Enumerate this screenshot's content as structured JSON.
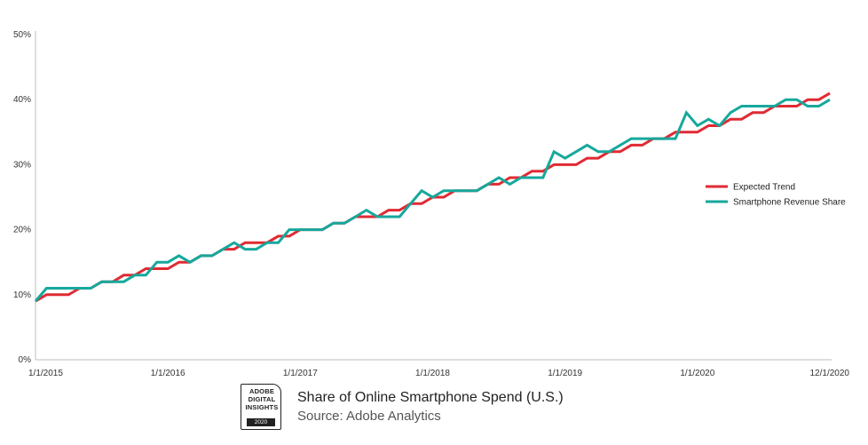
{
  "chart_data": {
    "type": "line",
    "ylim": [
      0,
      50
    ],
    "y_ticks": [
      "50%",
      "40%",
      "30%",
      "20%",
      "10%",
      "0%"
    ],
    "x_ticks": [
      "1/1/2015",
      "1/1/2016",
      "1/1/2017",
      "1/1/2018",
      "1/1/2019",
      "1/1/2020",
      "12/1/2020"
    ],
    "x_start": "1/1/2015",
    "x_end": "12/1/2020",
    "grid": false,
    "legend_position": "right",
    "series": [
      {
        "name": "Expected Trend",
        "color": "#e02a33",
        "values": [
          9,
          10,
          10,
          10,
          11,
          11,
          12,
          12,
          13,
          13,
          14,
          14,
          14,
          15,
          15,
          16,
          16,
          17,
          17,
          18,
          18,
          18,
          19,
          19,
          20,
          20,
          20,
          21,
          21,
          22,
          22,
          22,
          23,
          23,
          24,
          24,
          25,
          25,
          26,
          26,
          26,
          27,
          27,
          28,
          28,
          29,
          29,
          30,
          30,
          30,
          31,
          31,
          32,
          32,
          33,
          33,
          34,
          34,
          35,
          35,
          35,
          36,
          36,
          37,
          37,
          38,
          38,
          39,
          39,
          39,
          40,
          40,
          41
        ]
      },
      {
        "name": "Smartphone Revenue Share",
        "color": "#16a89c",
        "values": [
          9,
          11,
          11,
          11,
          11,
          11,
          12,
          12,
          12,
          13,
          13,
          15,
          15,
          16,
          15,
          16,
          16,
          17,
          18,
          17,
          17,
          18,
          18,
          20,
          20,
          20,
          20,
          21,
          21,
          22,
          23,
          22,
          22,
          22,
          24,
          26,
          25,
          26,
          26,
          26,
          26,
          27,
          28,
          27,
          28,
          28,
          28,
          32,
          31,
          32,
          33,
          32,
          32,
          33,
          34,
          34,
          34,
          34,
          34,
          38,
          36,
          37,
          36,
          38,
          39,
          39,
          39,
          39,
          40,
          40,
          39,
          39,
          40
        ]
      }
    ]
  },
  "footer": {
    "badge_lines": [
      "ADOBE",
      "DIGITAL",
      "INSIGHTS"
    ],
    "badge_year": "2020",
    "title": "Share of Online Smartphone Spend (U.S.)",
    "subtitle": "Source: Adobe Analytics"
  }
}
